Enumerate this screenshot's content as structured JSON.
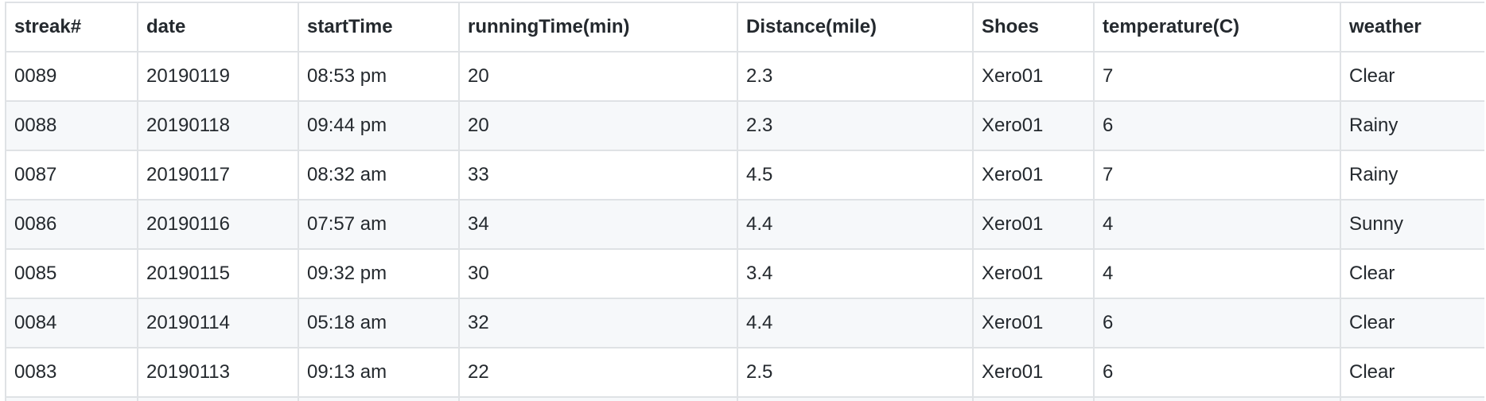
{
  "table": {
    "headers": [
      "streak#",
      "date",
      "startTime",
      "runningTime(min)",
      "Distance(mile)",
      "Shoes",
      "temperature(C)",
      "weather"
    ],
    "rows": [
      [
        "0089",
        "20190119",
        "08:53 pm",
        "20",
        "2.3",
        "Xero01",
        "7",
        "Clear"
      ],
      [
        "0088",
        "20190118",
        "09:44 pm",
        "20",
        "2.3",
        "Xero01",
        "6",
        "Rainy"
      ],
      [
        "0087",
        "20190117",
        "08:32 am",
        "33",
        "4.5",
        "Xero01",
        "7",
        "Rainy"
      ],
      [
        "0086",
        "20190116",
        "07:57 am",
        "34",
        "4.4",
        "Xero01",
        "4",
        "Sunny"
      ],
      [
        "0085",
        "20190115",
        "09:32 pm",
        "30",
        "3.4",
        "Xero01",
        "4",
        "Clear"
      ],
      [
        "0084",
        "20190114",
        "05:18 am",
        "32",
        "4.4",
        "Xero01",
        "6",
        "Clear"
      ],
      [
        "0083",
        "20190113",
        "09:13 am",
        "22",
        "2.5",
        "Xero01",
        "6",
        "Clear"
      ]
    ]
  }
}
